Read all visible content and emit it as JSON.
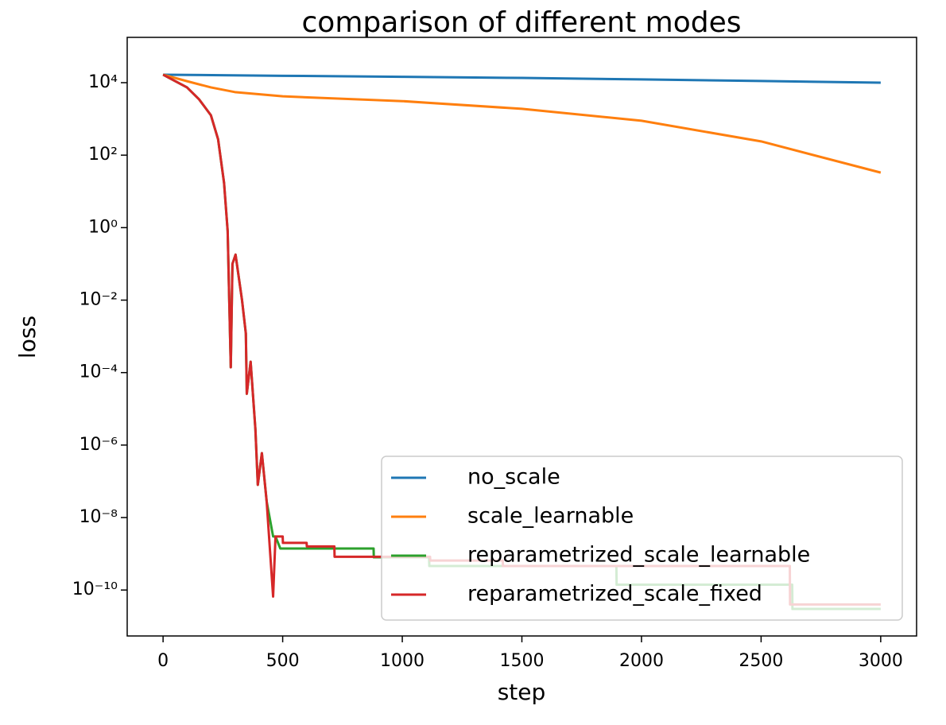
{
  "chart_data": {
    "type": "line",
    "title": "comparison of different modes",
    "xlabel": "step",
    "ylabel": "loss",
    "yscale": "log",
    "legend": "lower right",
    "grid": false,
    "xlim": [
      -150,
      3150
    ],
    "xticks": [
      0,
      500,
      1000,
      1500,
      2000,
      2500,
      3000
    ],
    "ylim": [
      5.4e-12,
      178000
    ],
    "yticks": [
      {
        "value": 1e-10,
        "label": "10⁻¹⁰"
      },
      {
        "value": 1e-08,
        "label": "10⁻⁸"
      },
      {
        "value": 1e-06,
        "label": "10⁻⁶"
      },
      {
        "value": 0.0001,
        "label": "10⁻⁴"
      },
      {
        "value": 0.01,
        "label": "10⁻²"
      },
      {
        "value": 1,
        "label": "10⁰"
      },
      {
        "value": 100,
        "label": "10²"
      },
      {
        "value": 10000,
        "label": "10⁴"
      }
    ],
    "series": [
      {
        "name": "no_scale",
        "color": "#1f77b4",
        "x": [
          0,
          500,
          1000,
          1500,
          2000,
          2500,
          3000
        ],
        "values": [
          16600,
          15500,
          14500,
          13500,
          12300,
          11100,
          10000
        ]
      },
      {
        "name": "scale_learnable",
        "color": "#ff7f0e",
        "x": [
          0,
          100,
          200,
          300,
          500,
          1000,
          1500,
          2000,
          2500,
          3000
        ],
        "values": [
          16600,
          11000,
          7400,
          5500,
          4200,
          3100,
          1900,
          890,
          240,
          33
        ]
      },
      {
        "name": "reparametrized_scale_learnable",
        "color": "#2ca02c",
        "x": [
          0,
          100,
          150,
          200,
          230,
          255,
          270,
          283,
          290,
          303,
          330,
          346,
          350,
          366,
          386,
          396,
          413,
          433,
          460,
          470,
          490,
          880,
          881,
          1112,
          1113,
          1895,
          1896,
          2630,
          2631,
          3000
        ],
        "values": [
          16600,
          7400,
          3500,
          1260,
          275,
          17,
          0.8,
          0.00014,
          0.1,
          0.18,
          0.01,
          0.0012,
          2.6e-05,
          0.0002,
          2.7e-06,
          8e-08,
          6e-07,
          2.8e-08,
          3e-09,
          3e-09,
          1.4e-09,
          1.4e-09,
          8e-10,
          8e-10,
          4.6e-10,
          4.6e-10,
          1.4e-10,
          1.4e-10,
          3e-11,
          3e-11
        ]
      },
      {
        "name": "reparametrized_scale_fixed",
        "color": "#d62728",
        "x": [
          0,
          100,
          150,
          200,
          230,
          255,
          270,
          283,
          290,
          303,
          330,
          346,
          350,
          366,
          386,
          396,
          413,
          433,
          460,
          470,
          500,
          501,
          600,
          601,
          716,
          717,
          1116,
          1117,
          1420,
          1421,
          2620,
          2621,
          3000
        ],
        "values": [
          16600,
          7400,
          3500,
          1260,
          275,
          17,
          0.8,
          0.00014,
          0.1,
          0.18,
          0.01,
          0.0012,
          2.6e-05,
          0.0002,
          2.7e-06,
          8e-08,
          6e-07,
          2.8e-08,
          6.6e-11,
          3e-09,
          3e-09,
          2e-09,
          2e-09,
          1.6e-09,
          1.6e-09,
          8.3e-10,
          8.3e-10,
          6.5e-10,
          6.5e-10,
          4.6e-10,
          4.6e-10,
          4e-11,
          4e-11
        ]
      }
    ]
  }
}
